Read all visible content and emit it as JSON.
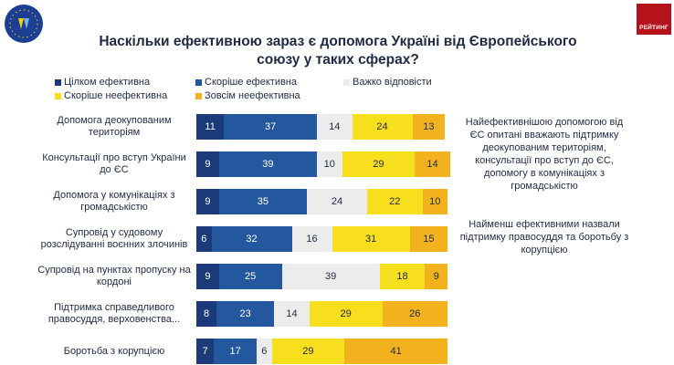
{
  "header": {
    "title_line1": "Наскільки ефективною зараз є допомога Україні від Європейського",
    "title_line2": "союзу у таких сферах?",
    "brand_right": "РЕЙТИНГ"
  },
  "notes": {
    "p1": "Найефективнішою допомогою від  ЄС опитані вважають підтримку деокупованим територіям, консультації про вступ до ЄС, допомогу в комунікаціях з громадськістю",
    "p2": "Найменш ефективними назвали підтримку правосуддя та боротьбу з корупцією"
  },
  "colors": {
    "fully_effective": "#1b3a7a",
    "rather_effective": "#23579e",
    "hard_to_say": "#ececec",
    "rather_ineffective": "#f7df1e",
    "totally_ineffective": "#f2b21d"
  },
  "chart_data": {
    "type": "bar",
    "orientation": "horizontal",
    "stacked": true,
    "title": "Наскільки ефективною зараз є допомога Україні від Європейського союзу у таких сферах?",
    "categories": [
      "Допомога деокупованим територіям",
      "Консультації про вступ України до ЄС",
      "Допомога у комунікаціях з громадськістю",
      "Супровід у судовому розслідуванні воєнних злочинів",
      "Супровід на пунктах пропуску на кордоні",
      "Підтримка справедливого правосуддя, верховенства...",
      "Боротьба з корупцією"
    ],
    "series": [
      {
        "name": "Цілком ефективна",
        "values": [
          11,
          9,
          9,
          6,
          9,
          8,
          7
        ]
      },
      {
        "name": "Скоріше ефективна",
        "values": [
          37,
          39,
          35,
          32,
          25,
          23,
          17
        ]
      },
      {
        "name": "Важко відповісти",
        "values": [
          14,
          10,
          24,
          16,
          39,
          14,
          6
        ]
      },
      {
        "name": "Скоріше неефективна",
        "values": [
          24,
          29,
          22,
          31,
          18,
          29,
          29
        ]
      },
      {
        "name": "Зовсім неефективна",
        "values": [
          13,
          14,
          10,
          15,
          9,
          26,
          41
        ]
      }
    ],
    "legend_position": "top",
    "xlim": [
      0,
      100
    ]
  }
}
